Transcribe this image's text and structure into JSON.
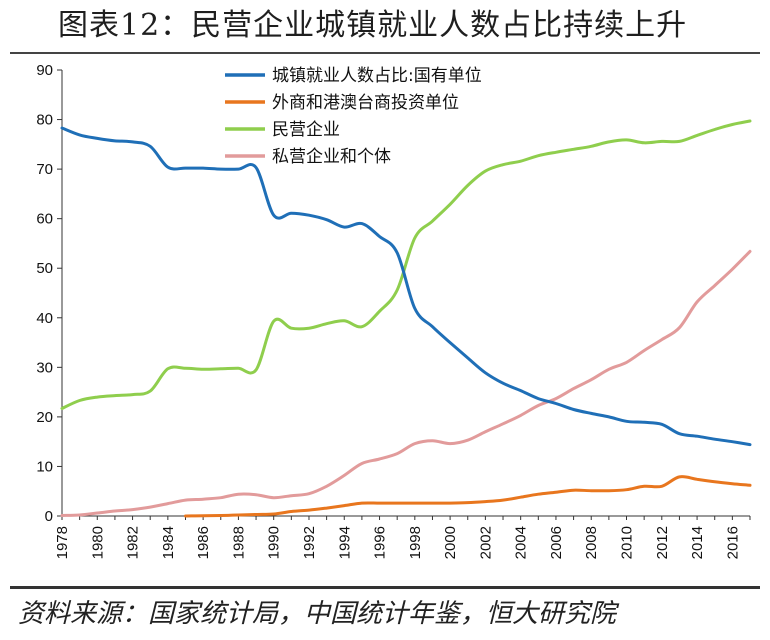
{
  "header": {
    "title": "图表12：民营企业城镇就业人数占比持续上升"
  },
  "footer": {
    "source": "资料来源：国家统计局，中国统计年鉴，恒大研究院"
  },
  "chart_data": {
    "type": "line",
    "title": "",
    "xlabel": "",
    "ylabel": "",
    "ylim": [
      0,
      90
    ],
    "yticks": [
      0,
      10,
      20,
      30,
      40,
      50,
      60,
      70,
      80,
      90
    ],
    "xlim": [
      1978,
      2017
    ],
    "xticks": [
      1978,
      1980,
      1982,
      1984,
      1986,
      1988,
      1990,
      1992,
      1994,
      1996,
      1998,
      2000,
      2002,
      2004,
      2006,
      2008,
      2010,
      2012,
      2014,
      2016
    ],
    "grid": false,
    "legend_position": "top-center",
    "series": [
      {
        "name": "城镇就业人数占比:国有单位",
        "color": "#1f6fb7",
        "x": [
          1978,
          1979,
          1980,
          1981,
          1982,
          1983,
          1984,
          1985,
          1986,
          1987,
          1988,
          1989,
          1990,
          1991,
          1992,
          1993,
          1994,
          1995,
          1996,
          1997,
          1998,
          1999,
          2000,
          2001,
          2002,
          2003,
          2004,
          2005,
          2006,
          2007,
          2008,
          2009,
          2010,
          2011,
          2012,
          2013,
          2014,
          2015,
          2016,
          2017
        ],
        "values": [
          78.3,
          76.9,
          76.2,
          75.7,
          75.5,
          74.6,
          70.4,
          70.2,
          70.2,
          70.0,
          70.0,
          70.3,
          60.7,
          61.1,
          60.7,
          59.8,
          58.3,
          59.0,
          56.4,
          53.1,
          41.9,
          38.2,
          35.0,
          31.9,
          28.9,
          26.8,
          25.3,
          23.7,
          22.7,
          21.5,
          20.7,
          20.0,
          19.1,
          18.9,
          18.5,
          16.6,
          16.1,
          15.5,
          15.0,
          14.4
        ]
      },
      {
        "name": "外商和港澳台商投资单位",
        "color": "#e8761e",
        "x": [
          1985,
          1986,
          1987,
          1988,
          1989,
          1990,
          1991,
          1992,
          1993,
          1994,
          1995,
          1996,
          1997,
          1998,
          1999,
          2000,
          2001,
          2002,
          2003,
          2004,
          2005,
          2006,
          2007,
          2008,
          2009,
          2010,
          2011,
          2012,
          2013,
          2014,
          2015,
          2016,
          2017
        ],
        "values": [
          0.0,
          0.05,
          0.1,
          0.2,
          0.3,
          0.4,
          0.9,
          1.2,
          1.6,
          2.1,
          2.6,
          2.6,
          2.6,
          2.6,
          2.6,
          2.6,
          2.7,
          2.9,
          3.2,
          3.8,
          4.4,
          4.8,
          5.2,
          5.1,
          5.1,
          5.3,
          6.0,
          6.0,
          7.9,
          7.4,
          6.9,
          6.5,
          6.2
        ]
      },
      {
        "name": "民营企业",
        "color": "#8fce4d",
        "x": [
          1978,
          1979,
          1980,
          1981,
          1982,
          1983,
          1984,
          1985,
          1986,
          1987,
          1988,
          1989,
          1990,
          1991,
          1992,
          1993,
          1994,
          1995,
          1996,
          1997,
          1998,
          1999,
          2000,
          2001,
          2002,
          2003,
          2004,
          2005,
          2006,
          2007,
          2008,
          2009,
          2010,
          2011,
          2012,
          2013,
          2014,
          2015,
          2016,
          2017
        ],
        "values": [
          21.7,
          23.3,
          24.0,
          24.3,
          24.5,
          25.2,
          29.7,
          29.8,
          29.6,
          29.7,
          29.8,
          29.5,
          39.3,
          37.9,
          37.9,
          38.8,
          39.4,
          38.2,
          41.3,
          45.6,
          56.1,
          59.5,
          62.9,
          66.7,
          69.6,
          70.9,
          71.6,
          72.7,
          73.4,
          74.0,
          74.6,
          75.5,
          75.9,
          75.3,
          75.6,
          75.6,
          76.8,
          78.0,
          79.0,
          79.7
        ]
      },
      {
        "name": "私营企业和个体",
        "color": "#e29b9b",
        "x": [
          1978,
          1979,
          1980,
          1981,
          1982,
          1983,
          1984,
          1985,
          1986,
          1987,
          1988,
          1989,
          1990,
          1991,
          1992,
          1993,
          1994,
          1995,
          1996,
          1997,
          1998,
          1999,
          2000,
          2001,
          2002,
          2003,
          2004,
          2005,
          2006,
          2007,
          2008,
          2009,
          2010,
          2011,
          2012,
          2013,
          2014,
          2015,
          2016,
          2017
        ],
        "values": [
          0.1,
          0.2,
          0.6,
          1.0,
          1.3,
          1.8,
          2.5,
          3.2,
          3.4,
          3.7,
          4.4,
          4.3,
          3.7,
          4.1,
          4.5,
          6.0,
          8.2,
          10.6,
          11.5,
          12.6,
          14.6,
          15.2,
          14.6,
          15.3,
          17.0,
          18.6,
          20.3,
          22.3,
          23.7,
          25.7,
          27.5,
          29.6,
          31.0,
          33.4,
          35.6,
          38.0,
          43.2,
          46.5,
          49.8,
          53.4
        ]
      }
    ]
  }
}
